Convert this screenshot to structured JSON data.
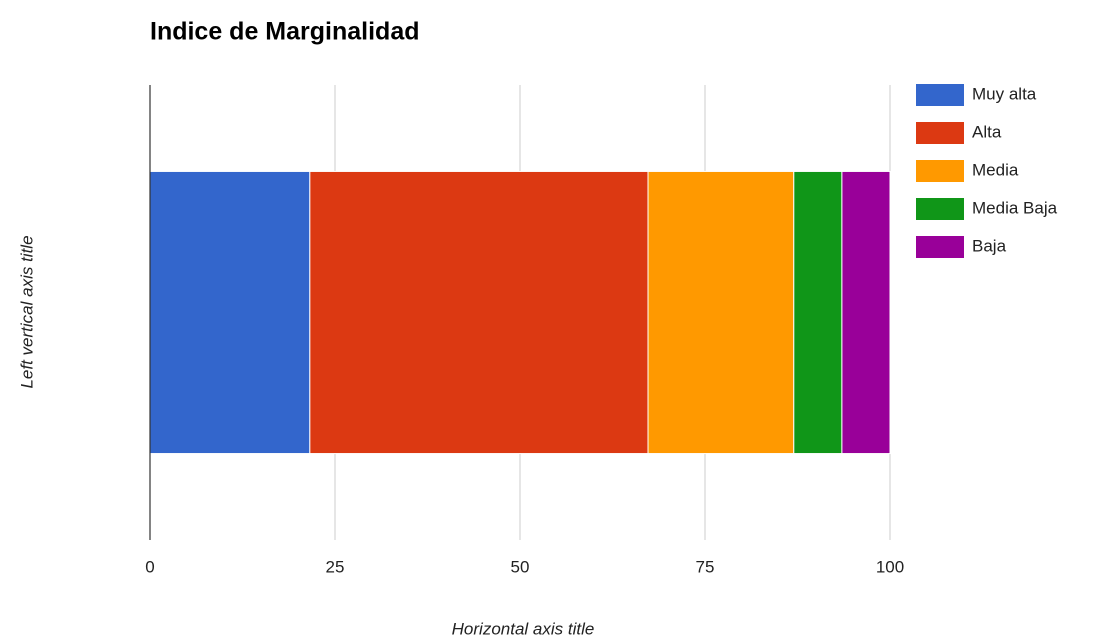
{
  "chart_data": {
    "type": "bar",
    "orientation": "horizontal",
    "stacked": true,
    "title": "Indice de Marginalidad",
    "x_axis_title": "Horizontal axis title",
    "y_axis_title": "Left vertical axis title",
    "categories": [
      null
    ],
    "series": [
      {
        "name": "Muy alta",
        "color": "#3366cc",
        "values": [
          21.6
        ]
      },
      {
        "name": "Alta",
        "color": "#dc3912",
        "values": [
          45.7
        ]
      },
      {
        "name": "Media",
        "color": "#ff9900",
        "values": [
          19.7
        ]
      },
      {
        "name": "Media Baja",
        "color": "#109618",
        "values": [
          6.5
        ]
      },
      {
        "name": "Baja",
        "color": "#990099",
        "values": [
          6.5
        ]
      }
    ],
    "xlim": [
      0,
      100
    ],
    "xticks": [
      0,
      25,
      50,
      75,
      100
    ],
    "grid": true,
    "legend": "right"
  }
}
